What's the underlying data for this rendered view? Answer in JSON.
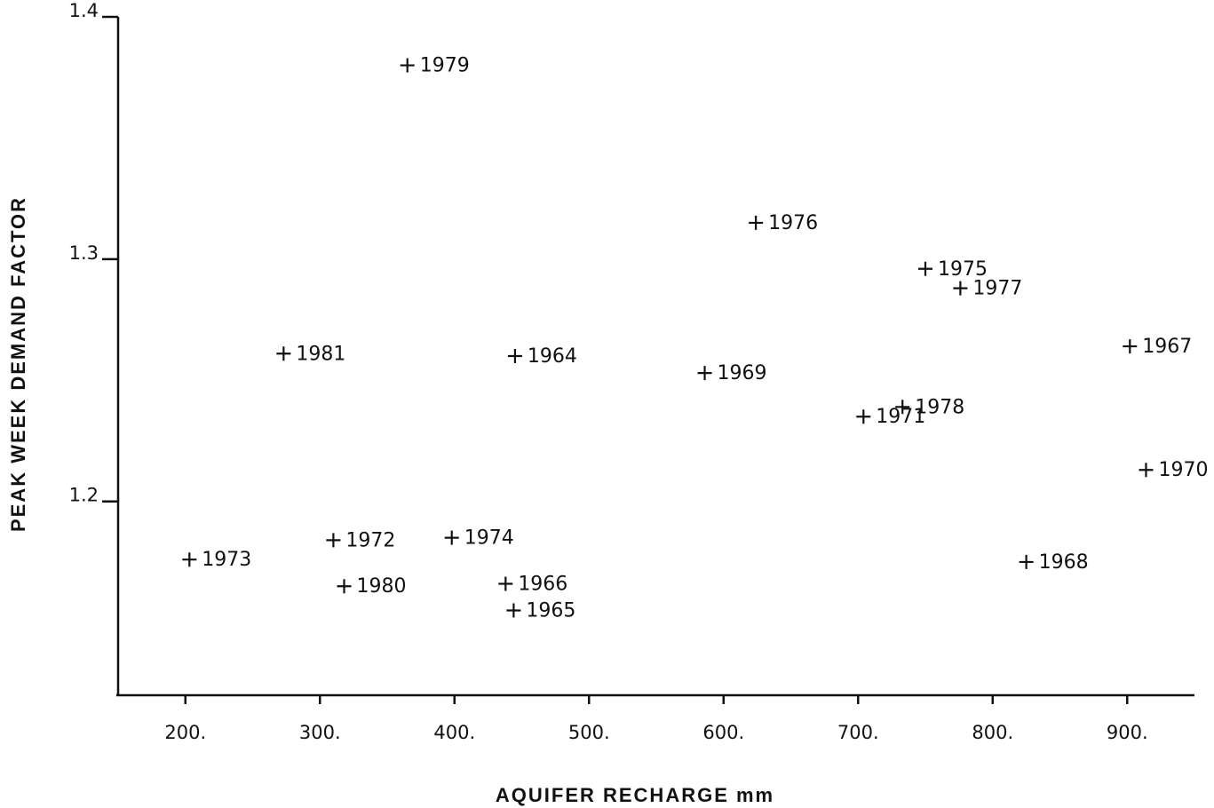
{
  "chart_data": {
    "type": "scatter",
    "x_label": "AQUIFER RECHARGE mm",
    "y_label": "PEAK WEEK DEMAND FACTOR",
    "x": [
      365,
      624,
      750,
      776,
      273,
      445,
      586,
      902,
      733,
      704,
      914,
      203,
      310,
      398,
      318,
      438,
      444,
      825
    ],
    "values": [
      1.38,
      1.315,
      1.296,
      1.288,
      1.261,
      1.26,
      1.253,
      1.264,
      1.239,
      1.235,
      1.213,
      1.176,
      1.184,
      1.185,
      1.165,
      1.166,
      1.155,
      1.175
    ],
    "labels": [
      "1979",
      "1976",
      "1975",
      "1977",
      "1981",
      "1964",
      "1969",
      "1967",
      "1978",
      "1971",
      "1970",
      "1973",
      "1972",
      "1974",
      "1980",
      "1966",
      "1965",
      "1968"
    ],
    "color": "#111111",
    "xlim": [
      150,
      950
    ],
    "ylim": [
      1.12,
      1.4
    ],
    "xticks": [
      {
        "value": 200,
        "label": "200."
      },
      {
        "value": 300,
        "label": "300."
      },
      {
        "value": 400,
        "label": "400."
      },
      {
        "value": 500,
        "label": "500."
      },
      {
        "value": 600,
        "label": "600."
      },
      {
        "value": 700,
        "label": "700."
      },
      {
        "value": 800,
        "label": "800."
      },
      {
        "value": 900,
        "label": "900."
      }
    ],
    "yticks": [
      1.2,
      1.3,
      1.4
    ]
  }
}
